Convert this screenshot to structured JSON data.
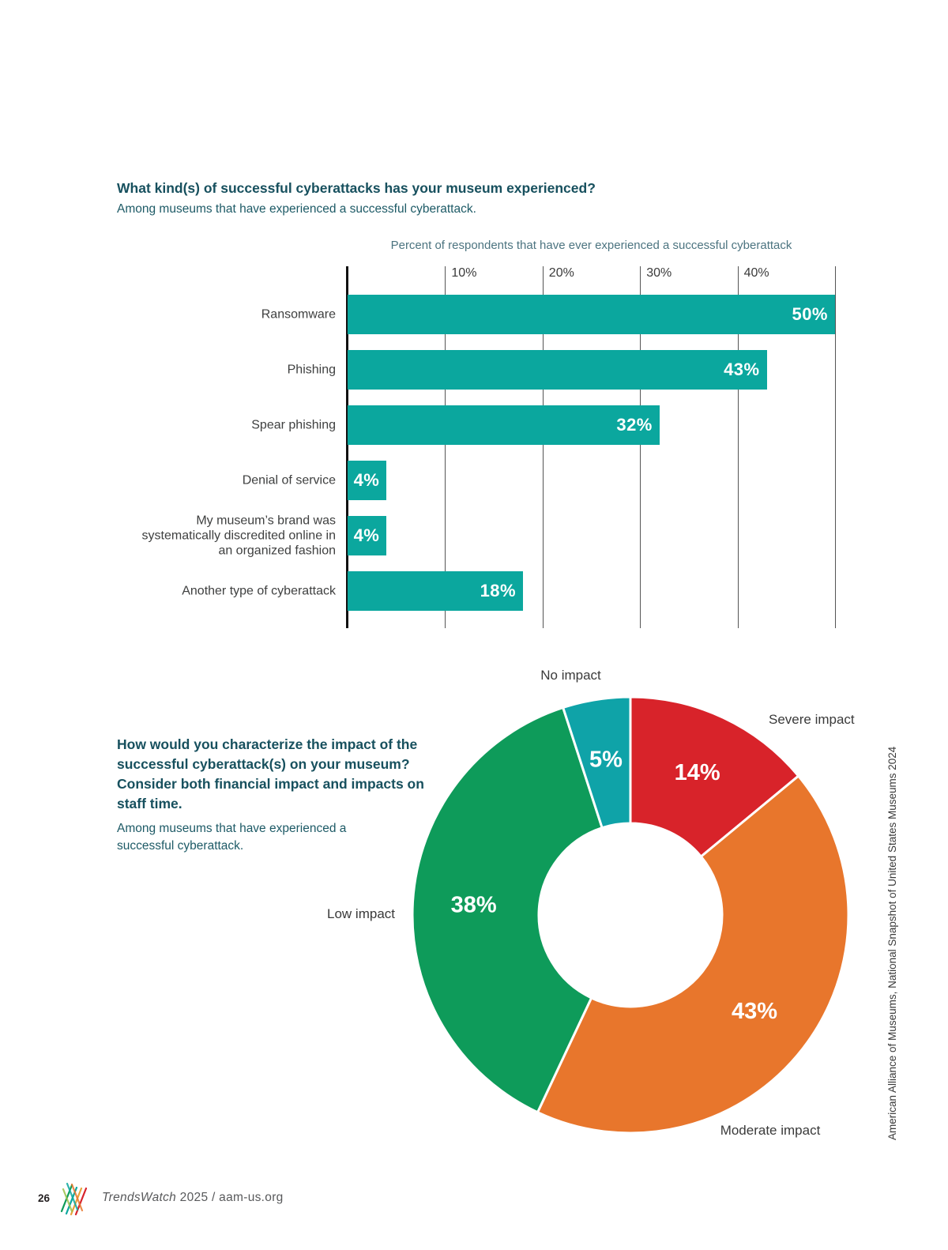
{
  "chart_data": [
    {
      "type": "bar",
      "orientation": "horizontal",
      "title": "What kind(s) of successful cyberattacks has your museum experienced?",
      "subtitle": "Among museums that have experienced a successful cyberattack.",
      "axis_title": "Percent of respondents that have ever experienced a successful cyberattack",
      "categories": [
        "Ransomware",
        "Phishing",
        "Spear phishing",
        "Denial of service",
        "My museum’s brand was systematically discredited online in an organized fashion",
        "Another type of cyberattack"
      ],
      "values": [
        50,
        43,
        32,
        4,
        4,
        18
      ],
      "value_labels": [
        "50%",
        "43%",
        "32%",
        "4%",
        "4%",
        "18%"
      ],
      "xlim": [
        0,
        50
      ],
      "ticks": [
        10,
        20,
        30,
        40
      ],
      "tick_labels": [
        "10%",
        "20%",
        "30%",
        "40%"
      ],
      "grid": true,
      "bar_color": "#0ba79e",
      "value_label_color": "#ffffff"
    },
    {
      "type": "pie",
      "subtype": "donut",
      "title": "How would you characterize the impact of the successful cyberattack(s) on your museum? Consider both financial impact and impacts on staff time.",
      "subtitle": "Among museums that have experienced a successful cyberattack.",
      "start_angle_deg": 0,
      "direction": "clockwise",
      "inner_radius_ratio": 0.42,
      "slices": [
        {
          "label": "Severe impact",
          "value": 14,
          "pct_label": "14%",
          "color": "#d8232a"
        },
        {
          "label": "Moderate impact",
          "value": 43,
          "pct_label": "43%",
          "color": "#e8762c"
        },
        {
          "label": "Low impact",
          "value": 38,
          "pct_label": "38%",
          "color": "#0e9b5a"
        },
        {
          "label": "No impact",
          "value": 5,
          "pct_label": "5%",
          "color": "#0fa3a8"
        }
      ]
    }
  ],
  "source_note": "American Alliance of Museums, National Snapshot of United States Museums 2024",
  "footer": {
    "page_number": "26",
    "brand_italic": "TrendsWatch",
    "brand_rest": " 2025 / aam-us.org"
  },
  "style_colors": {
    "heading": "#17505e",
    "body_text": "#3f4040",
    "bar_teal": "#0ba79e",
    "donut_red": "#d8232a",
    "donut_orange": "#e8762c",
    "donut_green": "#0e9b5a",
    "donut_teal": "#0fa3a8"
  }
}
